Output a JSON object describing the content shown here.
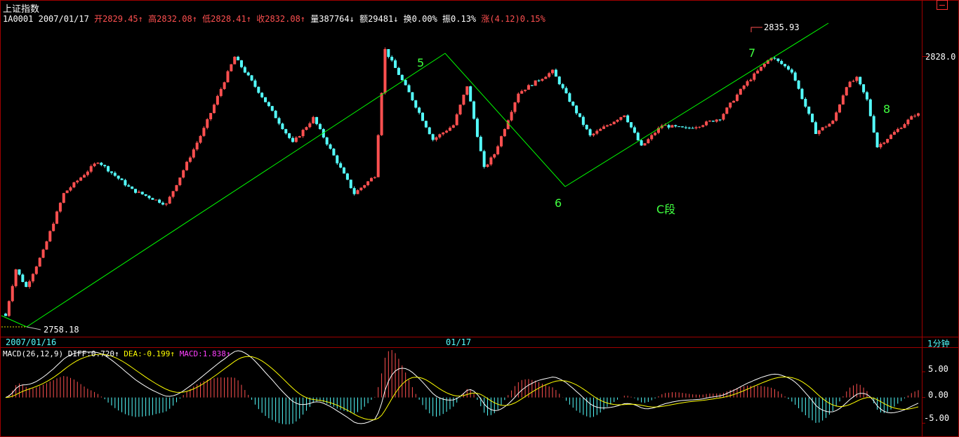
{
  "header": {
    "title": "上证指数",
    "code": "1A0001",
    "date": "2007/01/17",
    "open": "开2829.45↑",
    "high": "高2832.08↑",
    "low": "低2828.41↑",
    "close": "收2832.08↑",
    "volume": "量387764↓",
    "amount": "额29481↓",
    "turnover": "换0.00%",
    "amplitude": "振0.13%",
    "change": "涨(4.12)0.15%"
  },
  "window_icon": "restore-icon",
  "period_label": "1分钟",
  "x_axis": {
    "start_label": "2007/01/16",
    "mid_label": "01/17"
  },
  "price_labels": {
    "high_marker": "2835.93",
    "low_marker": "2758.18",
    "axis_tick": "2828.0"
  },
  "wave_labels": {
    "w5": "5",
    "w6": "6",
    "w7": "7",
    "w8": "8",
    "segment": "C段"
  },
  "macd": {
    "label": "MACD(26,12,9)",
    "diff": "DIFF:0.720↑",
    "dea": "DEA:-0.199↑",
    "macd": "MACD:1.838↑",
    "ticks": [
      "5.00",
      "0.00",
      "-5.00"
    ]
  },
  "colors": {
    "up": "#ff5050",
    "down": "#54ffff",
    "wave_line": "#00ff00",
    "diff_line": "#ffffff",
    "dea_line": "#ffff00",
    "frame": "#a00000"
  },
  "chart_data": [
    {
      "type": "candlestick",
      "title": "上证指数",
      "ylim": [
        2755,
        2840
      ],
      "y_ticks": [
        2828.0
      ],
      "x_labels": [
        "2007/01/16",
        "01/17"
      ],
      "path": [
        [
          0,
          2760
        ],
        [
          3,
          2773
        ],
        [
          6,
          2768
        ],
        [
          11,
          2778
        ],
        [
          17,
          2794
        ],
        [
          27,
          2803
        ],
        [
          37,
          2795
        ],
        [
          47,
          2791
        ],
        [
          58,
          2812
        ],
        [
          67,
          2832
        ],
        [
          75,
          2821
        ],
        [
          84,
          2808
        ],
        [
          90,
          2815
        ],
        [
          102,
          2794
        ],
        [
          108,
          2799
        ],
        [
          111,
          2834
        ],
        [
          118,
          2822
        ],
        [
          125,
          2809
        ],
        [
          131,
          2813
        ],
        [
          135,
          2824
        ],
        [
          140,
          2801
        ],
        [
          143,
          2805
        ],
        [
          150,
          2822
        ],
        [
          160,
          2828
        ],
        [
          171,
          2810
        ],
        [
          181,
          2816
        ],
        [
          186,
          2807
        ],
        [
          192,
          2813
        ],
        [
          199,
          2812
        ],
        [
          203,
          2813
        ],
        [
          209,
          2815
        ],
        [
          216,
          2824
        ],
        [
          224,
          2832
        ],
        [
          230,
          2828
        ],
        [
          232,
          2823
        ],
        [
          237,
          2811
        ],
        [
          242,
          2814
        ],
        [
          246,
          2824
        ],
        [
          249,
          2826
        ],
        [
          252,
          2820
        ],
        [
          255,
          2807
        ],
        [
          260,
          2811
        ],
        [
          266,
          2816
        ]
      ],
      "candle_count": 268,
      "high": 2835.93,
      "low": 2758.18,
      "last_close": 2832.08,
      "wave_points": [
        {
          "label": "5",
          "price": 2832
        },
        {
          "label": "6",
          "price": 2794
        },
        {
          "label": "7",
          "price": 2835.93
        },
        {
          "label": "8",
          "price": 2821
        }
      ],
      "segment_label": "C段"
    },
    {
      "type": "macd",
      "title": "MACD(26,12,9)",
      "ylim": [
        -7,
        8
      ],
      "y_ticks": [
        5.0,
        0.0,
        -5.0
      ],
      "series": [
        {
          "name": "DIFF",
          "last": 0.72
        },
        {
          "name": "DEA",
          "last": -0.199
        },
        {
          "name": "MACD",
          "last": 1.838
        }
      ]
    }
  ]
}
